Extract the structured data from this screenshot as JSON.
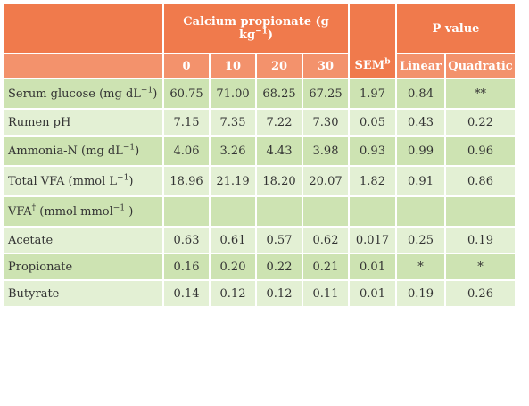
{
  "headers": {
    "group_title": "Calcium propionate (g kg",
    "group_title_sup": "−1",
    "group_title_close": ")",
    "sem": "SEM",
    "sem_sup": "b",
    "pvalue": "P value",
    "levels": [
      "0",
      "10",
      "20",
      "30"
    ],
    "linear": "Linear",
    "quadratic": "Quadratic"
  },
  "rows": [
    {
      "label": "Serum glucose (mg dL",
      "sup": "−1",
      "close": ")",
      "values": [
        "60.75",
        "71.00",
        "68.25",
        "67.25"
      ],
      "sem": "1.97",
      "linear": "0.84",
      "quadratic": "**"
    },
    {
      "label": "Rumen pH",
      "sup": "",
      "close": "",
      "values": [
        "7.15",
        "7.35",
        "7.22",
        "7.30"
      ],
      "sem": "0.05",
      "linear": "0.43",
      "quadratic": "0.22"
    },
    {
      "label": "Ammonia-N (mg dL",
      "sup": "−1",
      "close": ")",
      "values": [
        "4.06",
        "3.26",
        "4.43",
        "3.98"
      ],
      "sem": "0.93",
      "linear": "0.99",
      "quadratic": "0.96"
    },
    {
      "label": "Total VFA (mmol L",
      "sup": "−1",
      "close": ")",
      "values": [
        "18.96",
        "21.19",
        "18.20",
        "20.07"
      ],
      "sem": "1.82",
      "linear": "0.91",
      "quadratic": "0.86"
    },
    {
      "label": "VFA",
      "sup": "†",
      "close": " (mmol mmol",
      "sup2": "−1",
      "close2": " )",
      "values": [
        "",
        "",
        "",
        ""
      ],
      "sem": "",
      "linear": "",
      "quadratic": ""
    },
    {
      "label": "Acetate",
      "sup": "",
      "close": "",
      "values": [
        "0.63",
        "0.61",
        "0.57",
        "0.62"
      ],
      "sem": "0.017",
      "linear": "0.25",
      "quadratic": "0.19"
    },
    {
      "label": "Propionate",
      "sup": "",
      "close": "",
      "values": [
        "0.16",
        "0.20",
        "0.22",
        "0.21"
      ],
      "sem": "0.01",
      "linear": "*",
      "quadratic": "*"
    },
    {
      "label": "Butyrate",
      "sup": "",
      "close": "",
      "values": [
        "0.14",
        "0.12",
        "0.12",
        "0.11"
      ],
      "sem": "0.01",
      "linear": "0.19",
      "quadratic": "0.26"
    }
  ],
  "colors": {
    "header_dark": "#f07a4c",
    "header_light": "#f3926c",
    "row_dark": "#cde3b2",
    "row_light": "#e3f0d4"
  }
}
